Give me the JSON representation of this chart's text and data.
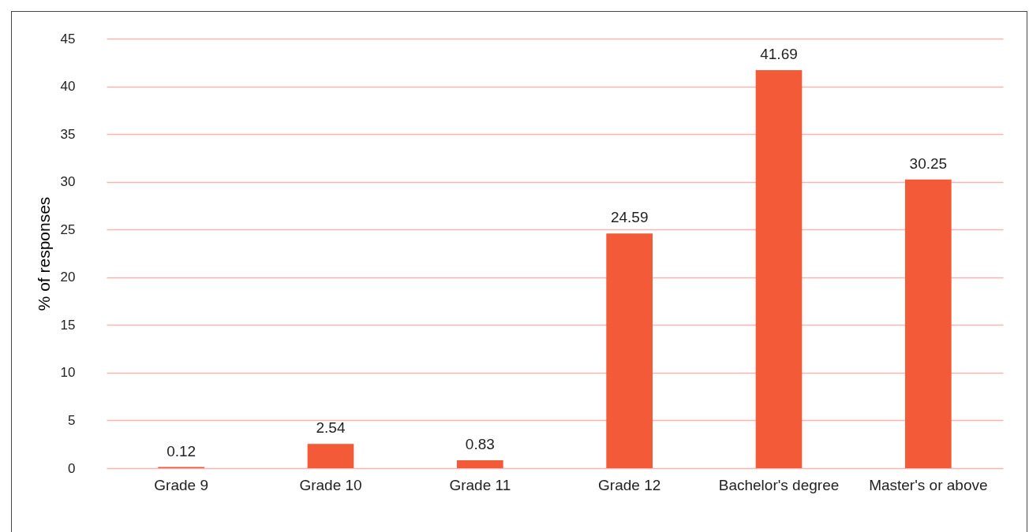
{
  "chart_data": {
    "type": "bar",
    "ylabel": "% of responses",
    "categories": [
      "Grade 9",
      "Grade 10",
      "Grade 11",
      "Grade 12",
      "Bachelor's degree",
      "Master's or above"
    ],
    "values": [
      0.12,
      2.54,
      0.83,
      24.59,
      41.69,
      30.25
    ],
    "color": "#f35a37",
    "ylim": [
      0,
      45
    ],
    "yticks": [
      0,
      5,
      10,
      15,
      20,
      25,
      30,
      35,
      40,
      45
    ],
    "grid": "y",
    "data_labels": true
  }
}
